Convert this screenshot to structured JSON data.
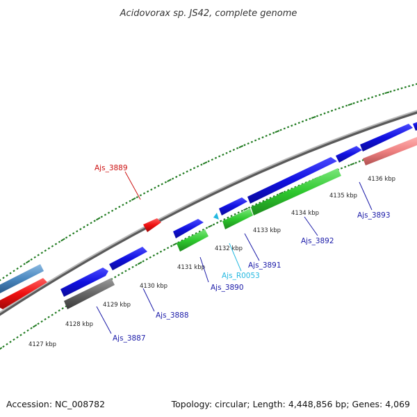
{
  "title": "Acidovorax sp. JS42, complete genome",
  "footer": {
    "accession": "Accession: NC_008782",
    "summary": "Topology: circular; Length: 4,448,856 bp; Genes: 4,069"
  },
  "colors": {
    "background": "#ffffff",
    "backbone": "#8a8a8a",
    "tick": "#1f7a1f",
    "gene_blue": "#1010e0",
    "gene_green": "#2ec82e",
    "gene_red": "#ee1010",
    "gene_gray": "#666666",
    "gene_steel": "#4a88c0",
    "gene_pink": "#ee8080",
    "label_blue": "#1a1aa8",
    "label_red": "#cc1010",
    "label_cyan": "#22b8e0"
  },
  "ruler_labels": [
    "4127 kbp",
    "4128 kbp",
    "4129 kbp",
    "4130 kbp",
    "4131 kbp",
    "4132 kbp",
    "4133 kbp",
    "4134 kbp",
    "4135 kbp",
    "4136 kbp"
  ],
  "gene_labels": [
    {
      "name": "Ajs_3887",
      "color": "label_blue"
    },
    {
      "name": "Ajs_3888",
      "color": "label_blue"
    },
    {
      "name": "Ajs_3889",
      "color": "label_red"
    },
    {
      "name": "Ajs_3890",
      "color": "label_blue"
    },
    {
      "name": "Ajs_R0053",
      "color": "label_cyan"
    },
    {
      "name": "Ajs_3891",
      "color": "label_blue"
    },
    {
      "name": "Ajs_3892",
      "color": "label_blue"
    },
    {
      "name": "Ajs_3893",
      "color": "label_blue"
    }
  ]
}
